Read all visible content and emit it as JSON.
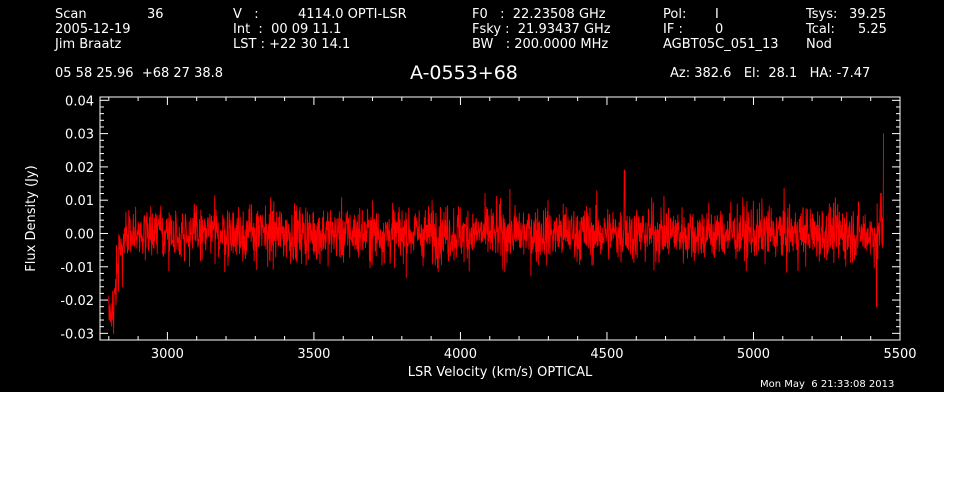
{
  "header": {
    "col1": [
      "Scan",
      "36",
      "2005-12-19",
      "Jim Braatz"
    ],
    "col2": [
      "V   :",
      "4114.0 OPTI-LSR",
      "Int  :  00 09 11.1",
      "LST : +22 30 14.1"
    ],
    "col3": [
      "F0   :  22.23508 GHz",
      "Fsky :  21.93437 GHz",
      "BW   : 200.0000 MHz"
    ],
    "col4": [
      "Pol:",
      "I",
      "IF :",
      "0",
      "AGBT05C_051_13"
    ],
    "col5": [
      "Tsys:",
      "39.25",
      "Tcal:",
      "5.25",
      "Nod"
    ],
    "coords": "05 58 25.96  +68 27 38.8",
    "source": "A-0553+68",
    "azel": "Az: 382.6   El:  28.1   HA: -7.47",
    "timestamp": "Mon May  6 21:33:08 2013"
  },
  "chart_data": {
    "type": "line",
    "title": "A-0553+68",
    "xlabel": "LSR Velocity (km/s) OPTICAL",
    "ylabel": "Flux Density (Jy)",
    "xlim": [
      2770,
      5500
    ],
    "ylim": [
      -0.032,
      0.041
    ],
    "xticks": [
      3000,
      3500,
      4000,
      4500,
      5000,
      5500
    ],
    "xtick_labels": [
      "3000",
      "3500",
      "4000",
      "4500",
      "5000",
      "5500"
    ],
    "yticks": [
      -0.03,
      -0.02,
      -0.01,
      0.0,
      0.01,
      0.02,
      0.03,
      0.04
    ],
    "ytick_labels": [
      "-0.03",
      "-0.02",
      "-0.01",
      "0.00",
      "0.01",
      "0.02",
      "0.03",
      "0.04"
    ],
    "grid": false,
    "series": [
      {
        "color": "#ff0000",
        "x_start": 2800,
        "x_end": 5445,
        "rms": 0.005,
        "features": [
          {
            "x": 2800,
            "y": -0.02
          },
          {
            "x": 2810,
            "y": -0.022
          },
          {
            "x": 2820,
            "y": -0.012
          },
          {
            "x": 2830,
            "y": -0.004
          },
          {
            "x": 2860,
            "y": 0.004
          },
          {
            "x": 4560,
            "y": 0.019
          },
          {
            "x": 5420,
            "y": -0.022
          },
          {
            "x": 5435,
            "y": 0.012
          },
          {
            "x": 5445,
            "y": 0.03
          }
        ]
      }
    ]
  }
}
